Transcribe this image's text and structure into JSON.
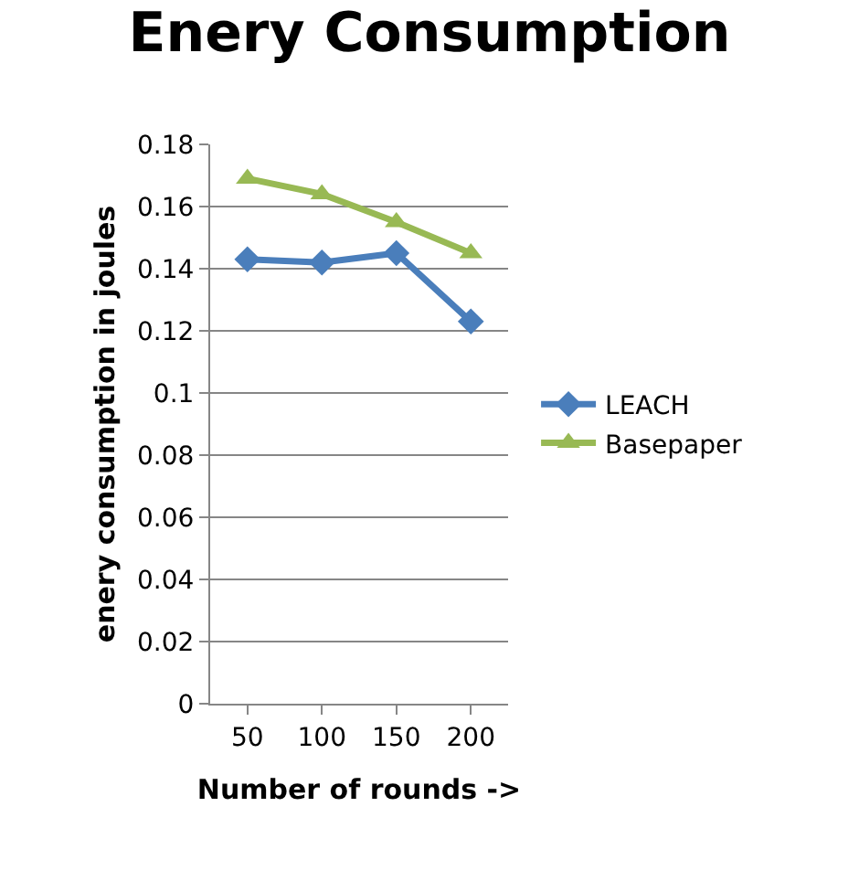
{
  "chart_data": {
    "type": "line",
    "title": "Enery Consumption",
    "xlabel": "Number of rounds ->",
    "ylabel": "enery consumption in joules",
    "categories": [
      "50",
      "100",
      "150",
      "200"
    ],
    "series": [
      {
        "name": "LEACH",
        "color": "#4a7ebb",
        "marker": "diamond",
        "values": [
          0.143,
          0.142,
          0.145,
          0.123
        ]
      },
      {
        "name": "Basepaper",
        "color": "#98b954",
        "marker": "triangle",
        "values": [
          0.169,
          0.164,
          0.155,
          0.145
        ]
      }
    ],
    "ylim": [
      0,
      0.18
    ],
    "yticks": [
      0,
      0.02,
      0.04,
      0.06,
      0.08,
      0.1,
      0.12,
      0.14,
      0.16,
      0.18
    ],
    "grid": "y",
    "legend": "right"
  }
}
